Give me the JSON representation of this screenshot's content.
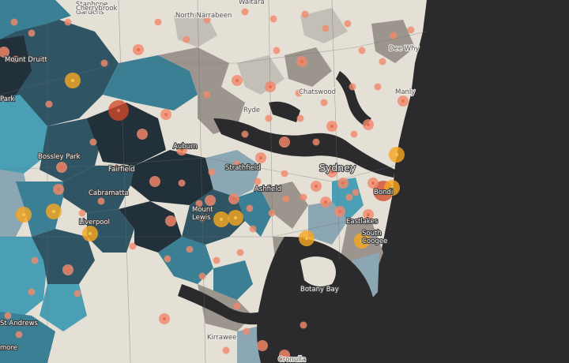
{
  "map": {
    "title": "",
    "colors": {
      "land": "#e5e0d6",
      "water": "#2b2b2e",
      "choropleth": [
        "#22303a",
        "#2f5565",
        "#3a7f94",
        "#4a9fb5",
        "#8aa7b3",
        "#9c958d",
        "#c4bfb6"
      ],
      "bubble_low": "#f08a6c",
      "bubble_mid": "#f5a623",
      "bubble_high": "#d2492c"
    },
    "place_labels": [
      {
        "text": "Waitara",
        "style": "dark"
      },
      {
        "text": "North Narrabeen",
        "style": "dark"
      },
      {
        "text": "Stanhope Gardens",
        "style": "dark"
      },
      {
        "text": "Cherrybrook",
        "style": "dark"
      },
      {
        "text": "Dee Why",
        "style": "dark"
      },
      {
        "text": "Mount Druitt",
        "style": "light"
      },
      {
        "text": "Park",
        "style": "light"
      },
      {
        "text": "Chatswood",
        "style": "dark"
      },
      {
        "text": "Manly",
        "style": "dark"
      },
      {
        "text": "Ryde",
        "style": "dark"
      },
      {
        "text": "Auburn",
        "style": "light"
      },
      {
        "text": "Bossley Park",
        "style": "light"
      },
      {
        "text": "Fairfield",
        "style": "light"
      },
      {
        "text": "Strathfield",
        "style": "light"
      },
      {
        "text": "Sydney",
        "style": "big"
      },
      {
        "text": "Ashfield",
        "style": "light"
      },
      {
        "text": "Cabramatta",
        "style": "light"
      },
      {
        "text": "Bondi",
        "style": "light"
      },
      {
        "text": "Mount Lewis",
        "style": "light"
      },
      {
        "text": "Liverpool",
        "style": "light"
      },
      {
        "text": "Eastlakes",
        "style": "light"
      },
      {
        "text": "South Coogee",
        "style": "light"
      },
      {
        "text": "Botany Bay",
        "style": "light"
      },
      {
        "text": "St Andrews",
        "style": "light"
      },
      {
        "text": "Kirrawee",
        "style": "dark"
      },
      {
        "text": "Cronulla",
        "style": "dark"
      },
      {
        "text": "more",
        "style": "light"
      }
    ],
    "bubble_levels": [
      "small",
      "medium",
      "large",
      "highest"
    ]
  }
}
